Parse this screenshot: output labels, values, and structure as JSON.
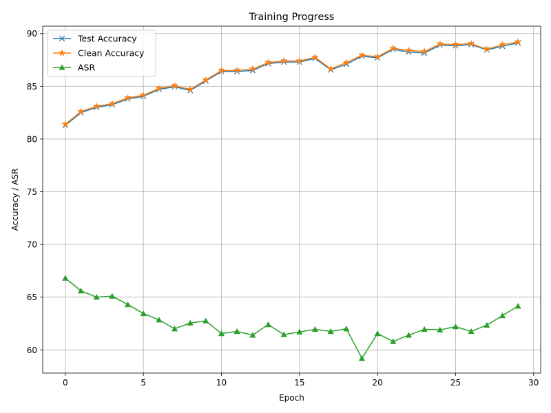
{
  "chart_data": {
    "type": "line",
    "title": "Training Progress",
    "xlabel": "Epoch",
    "ylabel": "Accuracy / ASR",
    "xlim": [
      -1.45,
      30.45
    ],
    "ylim": [
      57.8,
      90.7
    ],
    "xticks": [
      0,
      5,
      10,
      15,
      20,
      25,
      30
    ],
    "yticks": [
      60,
      65,
      70,
      75,
      80,
      85,
      90
    ],
    "grid": true,
    "legend_position": "top-left",
    "x": [
      0,
      1,
      2,
      3,
      4,
      5,
      6,
      7,
      8,
      9,
      10,
      11,
      12,
      13,
      14,
      15,
      16,
      17,
      18,
      19,
      20,
      21,
      22,
      23,
      24,
      25,
      26,
      27,
      28,
      29
    ],
    "series": [
      {
        "name": "Test Accuracy",
        "color": "#1f77b4",
        "marker": "x",
        "values": [
          81.3,
          82.5,
          83.0,
          83.25,
          83.8,
          84.05,
          84.7,
          84.95,
          84.6,
          85.5,
          86.4,
          86.4,
          86.5,
          87.15,
          87.3,
          87.3,
          87.65,
          86.55,
          87.1,
          87.85,
          87.7,
          88.5,
          88.25,
          88.15,
          88.9,
          88.85,
          88.95,
          88.45,
          88.8,
          89.1
        ]
      },
      {
        "name": "Clean Accuracy",
        "color": "#ff7f0e",
        "marker": "star",
        "values": [
          81.4,
          82.6,
          83.1,
          83.35,
          83.9,
          84.15,
          84.8,
          85.05,
          84.7,
          85.6,
          86.5,
          86.5,
          86.65,
          87.25,
          87.4,
          87.4,
          87.75,
          86.65,
          87.25,
          87.95,
          87.8,
          88.6,
          88.4,
          88.3,
          89.0,
          88.95,
          89.05,
          88.5,
          88.95,
          89.2
        ]
      },
      {
        "name": "ASR",
        "color": "#2ca02c",
        "marker": "triangle-up",
        "values": [
          66.8,
          65.6,
          65.0,
          65.1,
          64.3,
          63.45,
          62.85,
          62.0,
          62.55,
          62.75,
          61.55,
          61.75,
          61.4,
          62.4,
          61.45,
          61.7,
          61.95,
          61.75,
          62.0,
          59.2,
          61.55,
          60.8,
          61.4,
          61.95,
          61.9,
          62.2,
          61.75,
          62.35,
          63.25,
          64.15
        ]
      }
    ]
  }
}
